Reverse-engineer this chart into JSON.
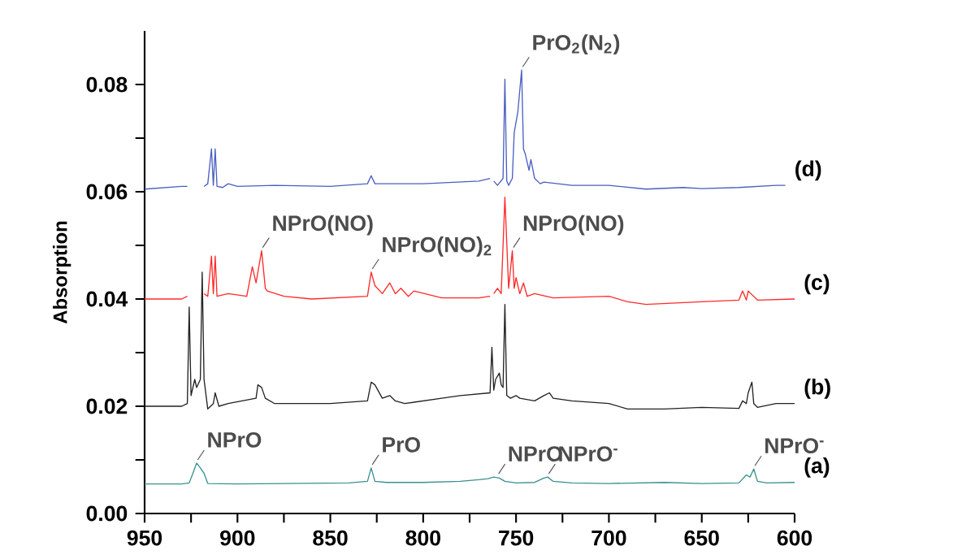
{
  "chart_data": {
    "type": "line",
    "ylabel": "Absorption",
    "xlim": [
      950,
      600
    ],
    "xticks": [
      950,
      {
        "value": 925,
        "label": null
      },
      900,
      {
        "value": 875,
        "label": null
      },
      850,
      {
        "value": 825,
        "label": null
      },
      800,
      {
        "value": 775,
        "label": null
      },
      750,
      {
        "value": 725,
        "label": null
      },
      700,
      {
        "value": 675,
        "label": null
      },
      650,
      {
        "value": 625,
        "label": null
      },
      600
    ],
    "ylim": [
      0,
      0.09
    ],
    "yticks": [
      {
        "value": 0,
        "label": "0.00"
      },
      {
        "value": 0.01,
        "label": null
      },
      {
        "value": 0.02,
        "label": "0.02"
      },
      {
        "value": 0.03,
        "label": null
      },
      {
        "value": 0.04,
        "label": "0.04"
      },
      {
        "value": 0.05,
        "label": null
      },
      {
        "value": 0.06,
        "label": "0.06"
      },
      {
        "value": 0.07,
        "label": null
      },
      {
        "value": 0.08,
        "label": "0.08"
      }
    ],
    "legend": false,
    "grid": false,
    "marker": "none",
    "line_style": "solid",
    "series": [
      {
        "name": "(a)",
        "color": "#3a9090",
        "x": [
          950,
          930,
          926,
          924,
          922,
          920,
          918,
          916,
          900,
          870,
          840,
          830,
          828,
          826,
          820,
          800,
          780,
          770,
          765,
          762,
          759,
          756,
          750,
          740,
          735,
          733,
          730,
          720,
          700,
          670,
          650,
          630,
          626,
          624,
          622,
          620,
          615,
          600
        ],
        "values": [
          0.0055,
          0.0055,
          0.0057,
          0.0075,
          0.0094,
          0.0085,
          0.0075,
          0.0056,
          0.0055,
          0.0056,
          0.0057,
          0.006,
          0.0085,
          0.006,
          0.0058,
          0.0058,
          0.006,
          0.0063,
          0.0065,
          0.0068,
          0.0066,
          0.006,
          0.0057,
          0.0058,
          0.0066,
          0.0068,
          0.006,
          0.0057,
          0.0056,
          0.0058,
          0.0056,
          0.0057,
          0.0072,
          0.0068,
          0.0083,
          0.006,
          0.0057,
          0.0058
        ]
      },
      {
        "name": "(b)",
        "color": "#222222",
        "x": [
          950,
          930,
          927,
          926,
          925,
          923,
          922,
          920,
          919,
          918,
          916,
          913,
          912,
          910,
          905,
          890,
          889,
          887,
          885,
          880,
          870,
          850,
          830,
          828,
          826,
          822,
          818,
          815,
          810,
          790,
          780,
          764,
          763,
          762,
          761,
          759,
          758,
          757,
          756,
          755,
          753,
          750,
          748,
          740,
          735,
          732,
          730,
          720,
          700,
          690,
          670,
          650,
          630,
          628,
          626,
          625,
          623,
          622,
          620,
          610,
          600
        ],
        "values": [
          0.02,
          0.02,
          0.0205,
          0.0385,
          0.022,
          0.025,
          0.0235,
          0.025,
          0.045,
          0.025,
          0.0195,
          0.0205,
          0.0225,
          0.02,
          0.0205,
          0.0215,
          0.024,
          0.0235,
          0.0215,
          0.0205,
          0.0205,
          0.0205,
          0.021,
          0.0245,
          0.024,
          0.0215,
          0.022,
          0.021,
          0.0205,
          0.0215,
          0.022,
          0.0225,
          0.031,
          0.023,
          0.025,
          0.0262,
          0.024,
          0.0235,
          0.039,
          0.022,
          0.0215,
          0.022,
          0.0215,
          0.021,
          0.022,
          0.0225,
          0.0215,
          0.021,
          0.0205,
          0.0195,
          0.0195,
          0.0198,
          0.0196,
          0.021,
          0.0205,
          0.0225,
          0.0245,
          0.0205,
          0.0198,
          0.0205,
          0.0205
        ]
      },
      {
        "name": "(c)",
        "color": "#ff2a2a",
        "x": [
          950,
          930,
          927,
          926,
          925,
          922,
          920,
          919,
          918,
          916,
          914,
          913,
          912,
          911,
          905,
          895,
          892,
          890,
          887,
          885,
          884,
          875,
          860,
          830,
          828,
          826,
          822,
          818,
          815,
          812,
          808,
          805,
          790,
          770,
          764,
          763,
          762,
          760,
          758,
          756,
          754,
          752,
          751,
          750,
          748,
          746,
          744,
          740,
          730,
          700,
          690,
          680,
          650,
          630,
          628,
          626,
          625,
          620,
          600
        ],
        "values": [
          0.04,
          0.04,
          0.0405,
          null,
          null,
          null,
          null,
          null,
          0.041,
          0.0405,
          0.048,
          0.041,
          0.048,
          0.0405,
          0.041,
          0.0405,
          0.046,
          0.043,
          0.049,
          0.042,
          0.0415,
          0.0405,
          0.04,
          0.0405,
          0.045,
          0.0425,
          0.041,
          0.043,
          0.041,
          0.042,
          0.0405,
          0.0415,
          0.0402,
          0.0402,
          0.0405,
          null,
          0.041,
          0.042,
          0.041,
          0.059,
          0.042,
          0.049,
          0.042,
          0.044,
          0.041,
          0.043,
          0.0405,
          0.041,
          0.0402,
          0.0405,
          0.0395,
          0.039,
          0.0395,
          0.0398,
          0.0415,
          0.0398,
          0.0415,
          0.0398,
          0.04
        ]
      },
      {
        "name": "(d)",
        "color": "#4a5fc0",
        "x": [
          950,
          930,
          927,
          926,
          925,
          922,
          921,
          920,
          919,
          918,
          916,
          914,
          913,
          912,
          911,
          908,
          905,
          900,
          880,
          850,
          830,
          828,
          826,
          800,
          770,
          764,
          763,
          762,
          760,
          757,
          756,
          755,
          754,
          752,
          751,
          749,
          747,
          746,
          745,
          743,
          742,
          740,
          737,
          735,
          720,
          700,
          680,
          660,
          650,
          630,
          610,
          605
        ],
        "values": [
          0.0605,
          0.061,
          0.061,
          null,
          null,
          null,
          null,
          null,
          null,
          0.061,
          0.0615,
          0.068,
          0.0612,
          0.068,
          0.061,
          0.0608,
          0.0615,
          0.061,
          0.0612,
          0.061,
          0.0615,
          0.063,
          0.0615,
          0.0615,
          0.062,
          0.0625,
          null,
          0.062,
          0.0612,
          0.0625,
          0.081,
          0.062,
          0.0612,
          0.0625,
          0.071,
          0.075,
          0.0827,
          0.068,
          0.067,
          0.064,
          0.066,
          0.0625,
          0.0615,
          0.0618,
          0.0612,
          0.0612,
          0.0605,
          0.0608,
          0.0606,
          0.0608,
          0.0612,
          0.0612
        ]
      }
    ],
    "annotations": [
      {
        "text": "NPrO",
        "x": 922,
        "y": 0.0094
      },
      {
        "text": "PrO",
        "x": 828,
        "y": 0.0085
      },
      {
        "text": "NPrO",
        "x": 760,
        "y": 0.0068
      },
      {
        "text": "NPrO$^{-}$",
        "x": 733,
        "y": 0.0068
      },
      {
        "text": "NPrO$^{-}$",
        "x": 622,
        "y": 0.0083
      },
      {
        "text": "NPrO(NO)",
        "x": 887,
        "y": 0.049
      },
      {
        "text": "NPrO(NO)$_{2}$",
        "x": 828,
        "y": 0.045
      },
      {
        "text": "NPrO(NO)",
        "x": 752,
        "y": 0.049
      },
      {
        "text": "PrO$_{2}$(N$_{2}$)",
        "x": 747,
        "y": 0.0827
      }
    ]
  }
}
